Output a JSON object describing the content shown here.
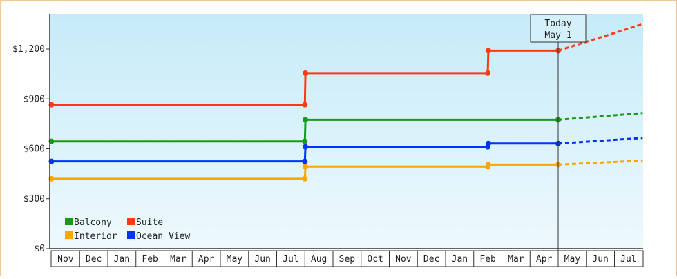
{
  "chart_data": {
    "type": "line",
    "step": true,
    "x_months": [
      "Nov",
      "Dec",
      "Jan",
      "Feb",
      "Mar",
      "Apr",
      "May",
      "Jun",
      "Jul",
      "Aug",
      "Sep",
      "Oct",
      "Nov",
      "Dec",
      "Jan",
      "Feb",
      "Mar",
      "Apr",
      "May",
      "Jun",
      "Jul"
    ],
    "y_ticks": [
      "$0",
      "$300",
      "$600",
      "$900",
      "$1,200"
    ],
    "ylim": [
      0,
      1200
    ],
    "grid": false,
    "legend_position": "bottom-left",
    "today": {
      "label_line1": "Today",
      "label_line2": "May 1",
      "month_index": 18
    },
    "series": [
      {
        "name": "Balcony",
        "color": "#1a9a1a",
        "points": [
          [
            0,
            645
          ],
          [
            9,
            645
          ],
          [
            9.02,
            775
          ],
          [
            18,
            775
          ]
        ],
        "forecast": [
          [
            18,
            775
          ],
          [
            21,
            815
          ]
        ]
      },
      {
        "name": "Suite",
        "color": "#ff3a12",
        "points": [
          [
            0,
            865
          ],
          [
            9,
            865
          ],
          [
            9.02,
            1055
          ],
          [
            15.5,
            1055
          ],
          [
            15.52,
            1190
          ],
          [
            18,
            1190
          ]
        ],
        "forecast": [
          [
            18,
            1190
          ],
          [
            21,
            1350
          ]
        ]
      },
      {
        "name": "Interior",
        "color": "#ffa500",
        "points": [
          [
            0,
            420
          ],
          [
            9,
            420
          ],
          [
            9.02,
            493
          ],
          [
            15.5,
            493
          ],
          [
            15.52,
            505
          ],
          [
            18,
            505
          ]
        ],
        "forecast": [
          [
            18,
            505
          ],
          [
            21,
            530
          ]
        ]
      },
      {
        "name": "Ocean View",
        "color": "#0033ff",
        "points": [
          [
            0,
            525
          ],
          [
            9,
            525
          ],
          [
            9.02,
            612
          ],
          [
            15.5,
            612
          ],
          [
            15.52,
            632
          ],
          [
            18,
            632
          ]
        ],
        "forecast": [
          [
            18,
            632
          ],
          [
            21,
            665
          ]
        ]
      }
    ]
  }
}
